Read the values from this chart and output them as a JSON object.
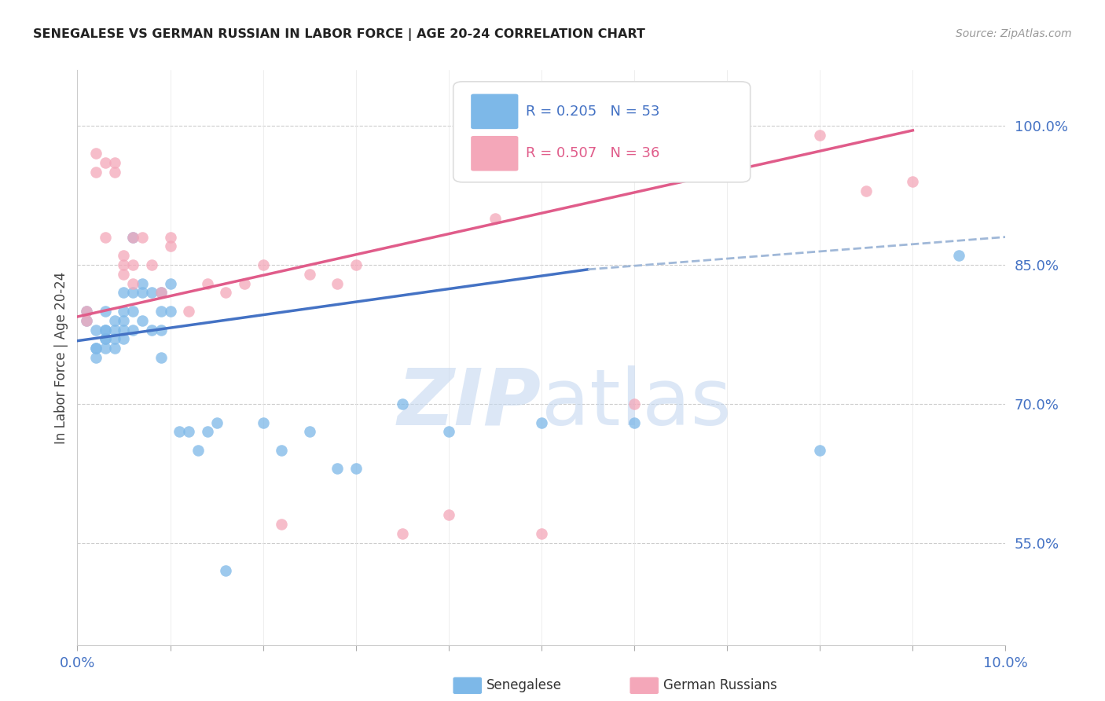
{
  "title": "SENEGALESE VS GERMAN RUSSIAN IN LABOR FORCE | AGE 20-24 CORRELATION CHART",
  "source": "Source: ZipAtlas.com",
  "ylabel": "In Labor Force | Age 20-24",
  "legend_blue_label": "Senegalese",
  "legend_pink_label": "German Russians",
  "legend_blue_r": "R = 0.205",
  "legend_blue_n": "N = 53",
  "legend_pink_r": "R = 0.507",
  "legend_pink_n": "N = 36",
  "x_min": 0.0,
  "x_max": 0.1,
  "y_min": 0.44,
  "y_max": 1.06,
  "yticks": [
    0.55,
    0.7,
    0.85,
    1.0
  ],
  "ytick_labels": [
    "55.0%",
    "70.0%",
    "85.0%",
    "100.0%"
  ],
  "xticks": [
    0.0,
    0.01,
    0.02,
    0.03,
    0.04,
    0.05,
    0.06,
    0.07,
    0.08,
    0.09,
    0.1
  ],
  "xtick_labels": [
    "0.0%",
    "",
    "",
    "",
    "",
    "",
    "",
    "",
    "",
    "",
    "10.0%"
  ],
  "blue_color": "#7db8e8",
  "pink_color": "#f4a7b9",
  "blue_line_color": "#4472c4",
  "pink_line_color": "#e05c8a",
  "dashed_line_color": "#a0b8d8",
  "axis_color": "#4472c4",
  "blue_scatter_x": [
    0.001,
    0.001,
    0.002,
    0.002,
    0.002,
    0.002,
    0.003,
    0.003,
    0.003,
    0.003,
    0.003,
    0.003,
    0.004,
    0.004,
    0.004,
    0.004,
    0.005,
    0.005,
    0.005,
    0.005,
    0.005,
    0.006,
    0.006,
    0.006,
    0.006,
    0.007,
    0.007,
    0.007,
    0.008,
    0.008,
    0.009,
    0.009,
    0.009,
    0.009,
    0.01,
    0.01,
    0.011,
    0.012,
    0.013,
    0.014,
    0.015,
    0.016,
    0.02,
    0.022,
    0.025,
    0.028,
    0.03,
    0.035,
    0.04,
    0.05,
    0.06,
    0.08,
    0.095
  ],
  "blue_scatter_y": [
    0.8,
    0.79,
    0.78,
    0.76,
    0.76,
    0.75,
    0.8,
    0.78,
    0.78,
    0.77,
    0.77,
    0.76,
    0.79,
    0.78,
    0.77,
    0.76,
    0.82,
    0.8,
    0.79,
    0.78,
    0.77,
    0.88,
    0.82,
    0.8,
    0.78,
    0.83,
    0.82,
    0.79,
    0.82,
    0.78,
    0.82,
    0.8,
    0.78,
    0.75,
    0.83,
    0.8,
    0.67,
    0.67,
    0.65,
    0.67,
    0.68,
    0.52,
    0.68,
    0.65,
    0.67,
    0.63,
    0.63,
    0.7,
    0.67,
    0.68,
    0.68,
    0.65,
    0.86
  ],
  "pink_scatter_x": [
    0.001,
    0.001,
    0.002,
    0.002,
    0.003,
    0.003,
    0.004,
    0.004,
    0.005,
    0.005,
    0.005,
    0.006,
    0.006,
    0.006,
    0.007,
    0.008,
    0.009,
    0.01,
    0.01,
    0.012,
    0.014,
    0.016,
    0.018,
    0.02,
    0.022,
    0.025,
    0.028,
    0.03,
    0.035,
    0.04,
    0.045,
    0.05,
    0.06,
    0.08,
    0.085,
    0.09
  ],
  "pink_scatter_y": [
    0.8,
    0.79,
    0.97,
    0.95,
    0.96,
    0.88,
    0.96,
    0.95,
    0.86,
    0.85,
    0.84,
    0.88,
    0.85,
    0.83,
    0.88,
    0.85,
    0.82,
    0.88,
    0.87,
    0.8,
    0.83,
    0.82,
    0.83,
    0.85,
    0.57,
    0.84,
    0.83,
    0.85,
    0.56,
    0.58,
    0.9,
    0.56,
    0.7,
    0.99,
    0.93,
    0.94
  ],
  "blue_line_x": [
    0.0,
    0.055
  ],
  "blue_line_y": [
    0.768,
    0.845
  ],
  "pink_line_x": [
    0.0,
    0.09
  ],
  "pink_line_y": [
    0.794,
    0.995
  ],
  "dashed_line_x": [
    0.055,
    0.1
  ],
  "dashed_line_y": [
    0.845,
    0.88
  ]
}
